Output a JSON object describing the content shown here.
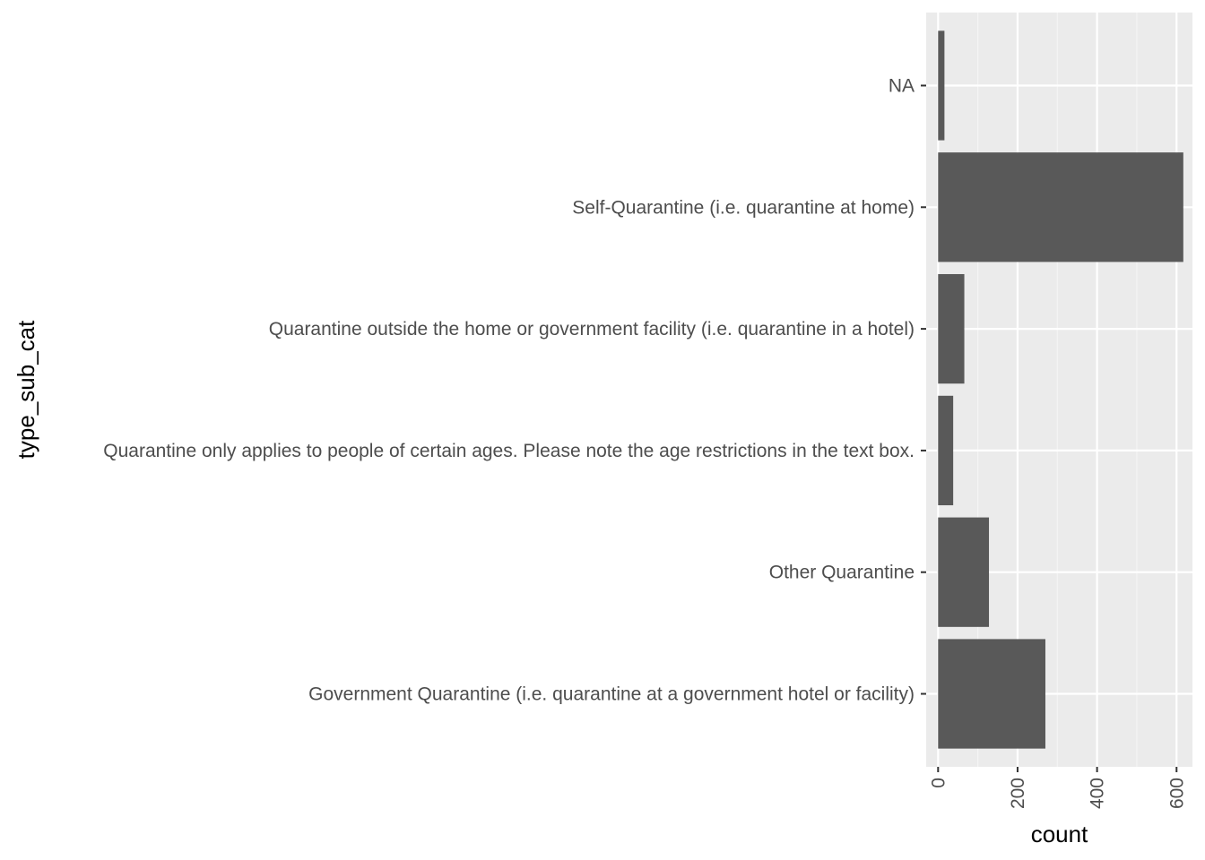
{
  "chart_data": {
    "type": "bar",
    "orientation": "horizontal",
    "title": "",
    "xlabel": "count",
    "ylabel": "type_sub_cat",
    "categories": [
      "Government Quarantine (i.e. quarantine at a government hotel or facility)",
      "Other Quarantine",
      "Quarantine only applies to people of certain ages. Please note the age restrictions in the text box.",
      "Quarantine outside the home or government facility (i.e. quarantine in a hotel)",
      "Self-Quarantine (i.e. quarantine at home)",
      "NA"
    ],
    "values": [
      270,
      128,
      38,
      66,
      617,
      16
    ],
    "xlim": [
      -30,
      640
    ],
    "xticks": [
      0,
      200,
      400,
      600
    ],
    "xtick_labels": [
      "0",
      "200",
      "400",
      "600"
    ],
    "grid": true,
    "legend": "none",
    "colors": {
      "bar": "#595959",
      "panel": "#ebebeb",
      "grid_major": "#ffffff",
      "grid_minor": "#f5f5f5",
      "tick": "#333333"
    }
  }
}
